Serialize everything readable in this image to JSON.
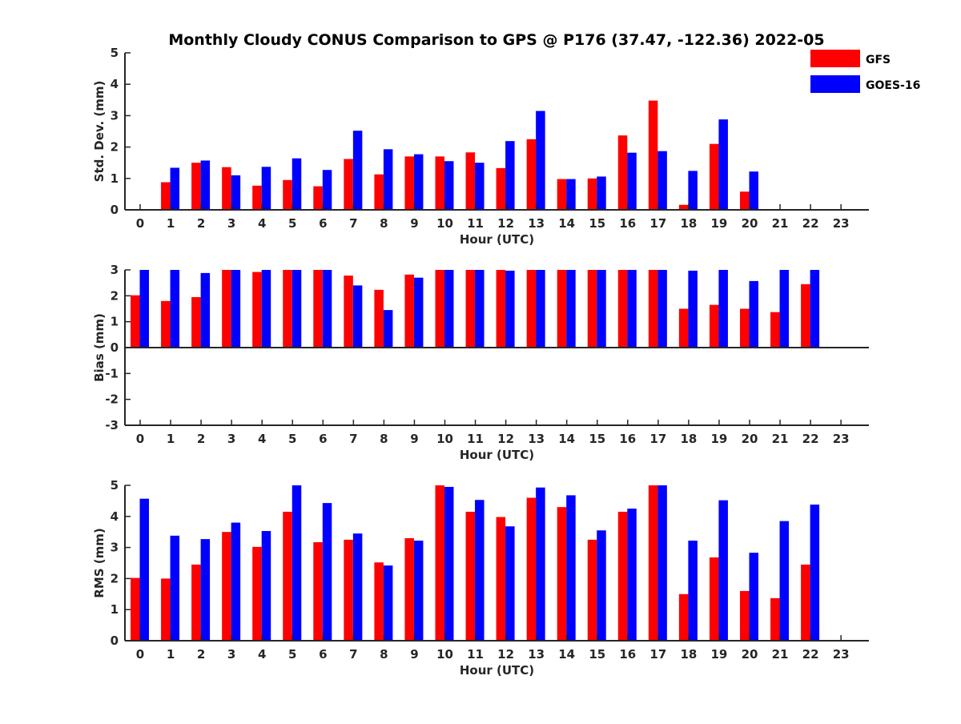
{
  "title": "Monthly Cloudy CONUS Comparison to GPS @ P176 (37.47, -122.36) 2022-05",
  "legend": [
    {
      "name": "GFS",
      "color": "#ff0000"
    },
    {
      "name": "GOES-16",
      "color": "#0000ff"
    }
  ],
  "chart_data": [
    {
      "type": "bar",
      "ylabel": "Std. Dev. (mm)",
      "xlabel": "Hour (UTC)",
      "ylim": [
        0,
        5
      ],
      "yticks": [
        "0",
        "1",
        "2",
        "3",
        "4",
        "5"
      ],
      "categories": [
        "0",
        "1",
        "2",
        "3",
        "4",
        "5",
        "6",
        "7",
        "8",
        "9",
        "10",
        "11",
        "12",
        "13",
        "14",
        "15",
        "16",
        "17",
        "18",
        "19",
        "20",
        "21",
        "22",
        "23"
      ],
      "series": [
        {
          "name": "GFS",
          "values": [
            null,
            0.88,
            1.5,
            1.36,
            0.77,
            0.95,
            0.75,
            1.62,
            1.13,
            1.7,
            1.7,
            1.83,
            1.33,
            2.25,
            0.98,
            1.0,
            2.37,
            3.48,
            0.16,
            2.1,
            0.58,
            null,
            null,
            null
          ]
        },
        {
          "name": "GOES-16",
          "values": [
            null,
            1.34,
            1.57,
            1.1,
            1.37,
            1.64,
            1.27,
            2.52,
            1.93,
            1.77,
            1.55,
            1.5,
            2.19,
            3.15,
            0.98,
            1.06,
            1.82,
            1.87,
            1.24,
            2.88,
            1.22,
            null,
            null,
            null
          ]
        }
      ]
    },
    {
      "type": "bar",
      "ylabel": "Bias (mm)",
      "xlabel": "Hour (UTC)",
      "ylim": [
        -3,
        3
      ],
      "yticks": [
        "-3",
        "-2",
        "-1",
        "0",
        "1",
        "2",
        "3"
      ],
      "categories": [
        "0",
        "1",
        "2",
        "3",
        "4",
        "5",
        "6",
        "7",
        "8",
        "9",
        "10",
        "11",
        "12",
        "13",
        "14",
        "15",
        "16",
        "17",
        "18",
        "19",
        "20",
        "21",
        "22",
        "23"
      ],
      "series": [
        {
          "name": "GFS",
          "values": [
            2.02,
            1.8,
            1.95,
            3,
            2.92,
            3,
            3,
            2.78,
            2.23,
            2.82,
            3,
            3,
            3,
            3,
            3,
            3,
            3,
            3,
            1.5,
            1.65,
            1.5,
            1.37,
            2.45,
            null
          ]
        },
        {
          "name": "GOES-16",
          "values": [
            3,
            3,
            2.88,
            3,
            3,
            3,
            3,
            2.4,
            1.45,
            2.7,
            3,
            3,
            2.97,
            3,
            3,
            3,
            3,
            3,
            2.97,
            3,
            2.57,
            3,
            3,
            null
          ]
        }
      ]
    },
    {
      "type": "bar",
      "ylabel": "RMS (mm)",
      "xlabel": "Hour (UTC)",
      "ylim": [
        0,
        5
      ],
      "yticks": [
        "0",
        "1",
        "2",
        "3",
        "4",
        "5"
      ],
      "categories": [
        "0",
        "1",
        "2",
        "3",
        "4",
        "5",
        "6",
        "7",
        "8",
        "9",
        "10",
        "11",
        "12",
        "13",
        "14",
        "15",
        "16",
        "17",
        "18",
        "19",
        "20",
        "21",
        "22",
        "23"
      ],
      "series": [
        {
          "name": "GFS",
          "values": [
            2.02,
            2.0,
            2.45,
            3.5,
            3.02,
            4.15,
            3.17,
            3.25,
            2.52,
            3.3,
            5.0,
            4.15,
            3.98,
            4.6,
            4.3,
            3.25,
            4.15,
            5.0,
            1.5,
            2.68,
            1.6,
            1.37,
            2.45,
            null
          ]
        },
        {
          "name": "GOES-16",
          "values": [
            4.57,
            3.38,
            3.27,
            3.8,
            3.53,
            5.0,
            4.43,
            3.45,
            2.42,
            3.22,
            4.95,
            4.53,
            3.68,
            4.93,
            4.68,
            3.55,
            4.25,
            5.0,
            3.22,
            4.52,
            2.83,
            3.85,
            4.38,
            null
          ]
        }
      ]
    }
  ]
}
